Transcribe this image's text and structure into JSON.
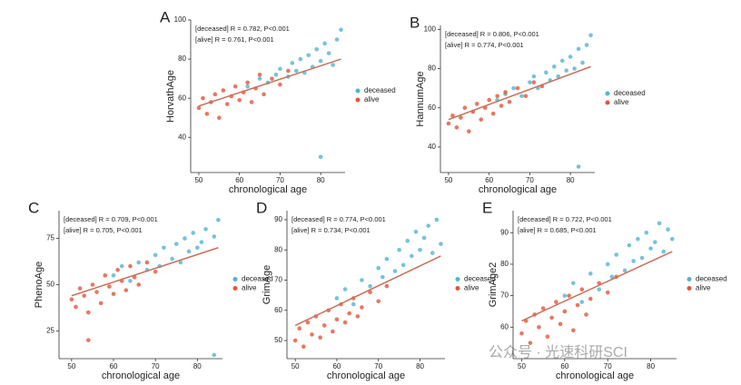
{
  "chart_data": [
    {
      "type": "scatter",
      "panel": "A",
      "xlabel": "chronological age",
      "ylabel": "HorvathAge",
      "annotations": [
        "[deceased] R = 0.782, P<0.001",
        "[alive] R = 0.761, P<0.001"
      ],
      "xlim": [
        48,
        86
      ],
      "ylim": [
        22,
        100
      ],
      "xticks": [
        50,
        60,
        70,
        80
      ],
      "yticks": [
        40,
        60,
        80,
        100
      ],
      "fit": {
        "x": [
          50,
          85
        ],
        "y": [
          56,
          80
        ],
        "color": "#c9705a"
      },
      "series": [
        {
          "name": "deceased",
          "color": "#52b4cf",
          "x": [
            62,
            65,
            67,
            69,
            70,
            72,
            73,
            74,
            75,
            76,
            77,
            78,
            79,
            80,
            81,
            82,
            83,
            84,
            85,
            80
          ],
          "y": [
            66,
            70,
            68,
            72,
            75,
            71,
            78,
            74,
            80,
            73,
            82,
            76,
            85,
            79,
            88,
            83,
            77,
            90,
            95,
            30
          ]
        },
        {
          "name": "alive",
          "color": "#e2553a",
          "x": [
            50,
            51,
            52,
            53,
            54,
            55,
            56,
            57,
            58,
            59,
            60,
            61,
            62,
            63,
            64,
            65,
            66,
            68,
            70,
            72
          ],
          "y": [
            55,
            60,
            52,
            58,
            62,
            50,
            64,
            57,
            61,
            66,
            59,
            63,
            68,
            58,
            65,
            72,
            62,
            70,
            67,
            74
          ]
        }
      ]
    },
    {
      "type": "scatter",
      "panel": "B",
      "xlabel": "chronological age",
      "ylabel": "HannumAge",
      "annotations": [
        "[deceased] R = 0.806, P<0.001",
        "[alive] R = 0.774, P<0.001"
      ],
      "xlim": [
        48,
        86
      ],
      "ylim": [
        27,
        102
      ],
      "xticks": [
        50,
        60,
        70,
        80
      ],
      "yticks": [
        40,
        60,
        80,
        100
      ],
      "fit": {
        "x": [
          50,
          85
        ],
        "y": [
          54,
          81
        ],
        "color": "#c9705a"
      },
      "series": [
        {
          "name": "deceased",
          "color": "#52b4cf",
          "x": [
            62,
            64,
            66,
            68,
            70,
            71,
            72,
            74,
            75,
            76,
            77,
            78,
            79,
            80,
            81,
            82,
            83,
            84,
            85,
            82
          ],
          "y": [
            64,
            67,
            70,
            66,
            73,
            76,
            70,
            78,
            74,
            81,
            76,
            84,
            79,
            86,
            80,
            90,
            83,
            92,
            97,
            30
          ]
        },
        {
          "name": "alive",
          "color": "#e2553a",
          "x": [
            50,
            51,
            52,
            53,
            54,
            55,
            56,
            57,
            58,
            59,
            60,
            61,
            62,
            63,
            64,
            65,
            67,
            69,
            71,
            73
          ],
          "y": [
            52,
            56,
            50,
            55,
            60,
            48,
            58,
            62,
            54,
            60,
            64,
            57,
            66,
            61,
            68,
            63,
            70,
            66,
            73,
            71
          ]
        }
      ]
    },
    {
      "type": "scatter",
      "panel": "C",
      "xlabel": "chronological age",
      "ylabel": "PhenoAge",
      "annotations": [
        "[deceased] R = 0.709, P<0.001",
        "[alive] R = 0.705, P<0.001"
      ],
      "xlim": [
        47,
        86
      ],
      "ylim": [
        10,
        90
      ],
      "xticks": [
        50,
        60,
        70,
        80
      ],
      "yticks": [
        25,
        50,
        75
      ],
      "fit": {
        "x": [
          50,
          85
        ],
        "y": [
          44,
          70
        ],
        "color": "#c9705a"
      },
      "series": [
        {
          "name": "deceased",
          "color": "#52b4cf",
          "x": [
            60,
            62,
            64,
            66,
            68,
            70,
            71,
            72,
            74,
            75,
            76,
            77,
            78,
            79,
            80,
            81,
            82,
            84,
            85,
            84
          ],
          "y": [
            55,
            60,
            52,
            62,
            58,
            66,
            60,
            70,
            64,
            72,
            62,
            75,
            68,
            78,
            70,
            73,
            80,
            76,
            85,
            12
          ]
        },
        {
          "name": "alive",
          "color": "#e2553a",
          "x": [
            50,
            51,
            52,
            53,
            54,
            55,
            56,
            57,
            58,
            59,
            60,
            61,
            62,
            63,
            64,
            65,
            66,
            68,
            70,
            54
          ],
          "y": [
            42,
            38,
            48,
            44,
            35,
            50,
            46,
            40,
            55,
            49,
            45,
            58,
            52,
            47,
            60,
            54,
            50,
            62,
            57,
            20
          ]
        }
      ]
    },
    {
      "type": "scatter",
      "panel": "D",
      "xlabel": "chronological age",
      "ylabel": "GrimAge",
      "annotations": [
        "[deceased] R = 0.774, P<0.001",
        "[alive] R = 0.734, P<0.001"
      ],
      "xlim": [
        48,
        86
      ],
      "ylim": [
        44,
        93
      ],
      "xticks": [
        50,
        60,
        70,
        80
      ],
      "yticks": [
        50,
        60,
        70,
        80,
        90
      ],
      "fit": {
        "x": [
          50,
          85
        ],
        "y": [
          55,
          78
        ],
        "color": "#c9705a"
      },
      "series": [
        {
          "name": "deceased",
          "color": "#52b4cf",
          "x": [
            60,
            62,
            64,
            66,
            68,
            70,
            71,
            72,
            74,
            75,
            76,
            77,
            78,
            79,
            80,
            81,
            82,
            83,
            84,
            85
          ],
          "y": [
            64,
            67,
            62,
            70,
            68,
            74,
            71,
            77,
            73,
            80,
            75,
            83,
            78,
            86,
            80,
            84,
            88,
            79,
            90,
            82
          ]
        },
        {
          "name": "alive",
          "color": "#e2553a",
          "x": [
            50,
            51,
            52,
            53,
            54,
            55,
            56,
            57,
            58,
            59,
            60,
            61,
            62,
            63,
            64,
            65,
            66,
            68,
            70,
            72
          ],
          "y": [
            50,
            54,
            48,
            56,
            52,
            58,
            51,
            55,
            60,
            53,
            57,
            62,
            56,
            59,
            64,
            58,
            61,
            66,
            63,
            68
          ]
        }
      ]
    },
    {
      "type": "scatter",
      "panel": "E",
      "xlabel": "chronological age",
      "ylabel": "GrimAge2",
      "annotations": [
        "[deceased] R = 0.722, P<0.001",
        "[alive] R = 0.685, P<0.001"
      ],
      "xlim": [
        48,
        86
      ],
      "ylim": [
        50,
        97
      ],
      "xticks": [
        50,
        60,
        70,
        80
      ],
      "yticks": [
        60,
        70,
        80,
        90
      ],
      "fit": {
        "x": [
          50,
          85
        ],
        "y": [
          62,
          84
        ],
        "color": "#c9705a"
      },
      "series": [
        {
          "name": "deceased",
          "color": "#52b4cf",
          "x": [
            60,
            62,
            64,
            66,
            68,
            70,
            71,
            72,
            74,
            75,
            76,
            77,
            78,
            79,
            80,
            81,
            82,
            83,
            84,
            85
          ],
          "y": [
            70,
            74,
            68,
            77,
            72,
            80,
            76,
            83,
            78,
            86,
            81,
            88,
            82,
            90,
            85,
            87,
            93,
            84,
            91,
            88
          ]
        },
        {
          "name": "alive",
          "color": "#e2553a",
          "x": [
            50,
            51,
            52,
            53,
            54,
            55,
            56,
            57,
            58,
            59,
            60,
            61,
            62,
            63,
            64,
            65,
            66,
            68,
            70,
            72
          ],
          "y": [
            58,
            62,
            55,
            64,
            60,
            66,
            57,
            63,
            68,
            61,
            65,
            70,
            59,
            67,
            72,
            64,
            69,
            74,
            71,
            76
          ]
        }
      ]
    }
  ],
  "watermark": "公众号 · 光速科研SCI"
}
